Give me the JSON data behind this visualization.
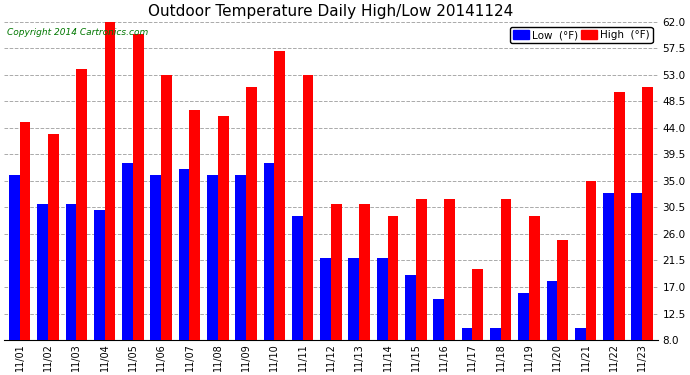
{
  "title": "Outdoor Temperature Daily High/Low 20141124",
  "copyright": "Copyright 2014 Cartronics.com",
  "categories": [
    "11/01",
    "11/02",
    "11/03",
    "11/04",
    "11/05",
    "11/06",
    "11/07",
    "11/08",
    "11/09",
    "11/10",
    "11/11",
    "11/12",
    "11/13",
    "11/14",
    "11/15",
    "11/16",
    "11/17",
    "11/18",
    "11/19",
    "11/20",
    "11/21",
    "11/22",
    "11/23"
  ],
  "low_values": [
    36,
    31,
    31,
    30,
    38,
    36,
    37,
    36,
    36,
    38,
    29,
    22,
    22,
    22,
    19,
    15,
    10,
    10,
    16,
    18,
    10,
    33,
    33
  ],
  "high_values": [
    45,
    43,
    54,
    62,
    60,
    53,
    47,
    46,
    51,
    57,
    53,
    31,
    31,
    29,
    32,
    32,
    20,
    32,
    29,
    25,
    35,
    50,
    51
  ],
  "low_color": "#0000ff",
  "high_color": "#ff0000",
  "background_color": "#ffffff",
  "grid_color": "#aaaaaa",
  "ylim": [
    8.0,
    62.0
  ],
  "yticks": [
    8.0,
    12.5,
    17.0,
    21.5,
    26.0,
    30.5,
    35.0,
    39.5,
    44.0,
    48.5,
    53.0,
    57.5,
    62.0
  ],
  "title_fontsize": 11,
  "legend_low_label": "Low  (°F)",
  "legend_high_label": "High  (°F)",
  "bar_width": 0.38,
  "figwidth": 6.9,
  "figheight": 3.75,
  "dpi": 100
}
